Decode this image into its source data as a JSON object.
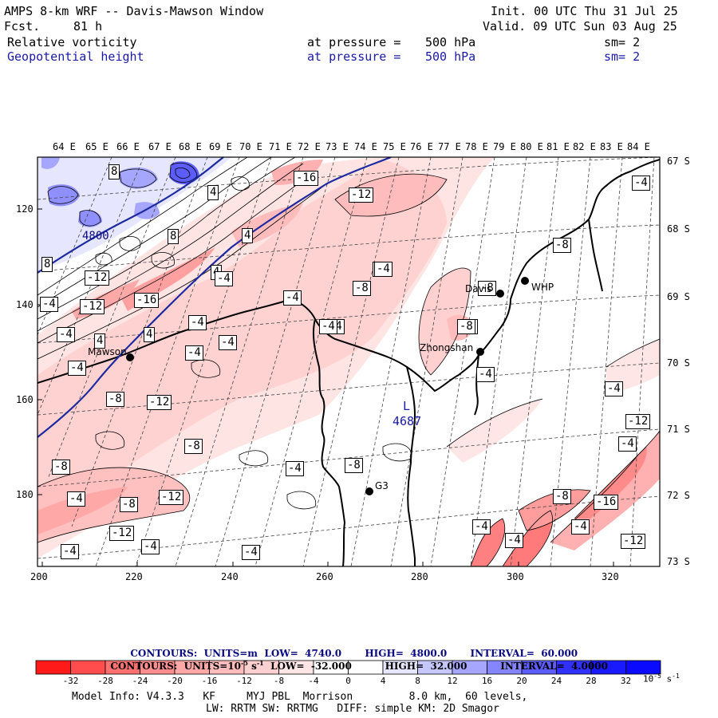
{
  "header": {
    "title": "AMPS 8-km WRF -- Davis-Mawson Window",
    "fcst_label": "Fcst.",
    "fcst_value": "81 h",
    "init": "Init. 00 UTC Thu 31 Jul 25",
    "valid": "Valid. 09 UTC Sun 03 Aug 25",
    "field1": {
      "name": "Relative vorticity",
      "pressure_label": "at pressure =",
      "pressure": "500 hPa",
      "sm": "sm= 2"
    },
    "field2": {
      "name": "Geopotential height",
      "pressure_label": "at pressure =",
      "pressure": "500 hPa",
      "sm": "sm= 2"
    }
  },
  "top_lon_labels": [
    "64 E",
    "65 E",
    "66 E",
    "67 E",
    "68 E",
    "69 E",
    "70 E",
    "71 E",
    "72 E",
    "73 E",
    "74 E",
    "75 E",
    "76 E",
    "77 E",
    "78 E",
    "79 E",
    "80 E",
    "81 E",
    "82 E",
    "83 E",
    "84 E"
  ],
  "right_lat_labels": [
    "67 S",
    "68 S",
    "69 S",
    "70 S",
    "71 S",
    "72 S",
    "73 S"
  ],
  "left_axis_labels": [
    "120",
    "140",
    "160",
    "180"
  ],
  "bottom_axis_labels": [
    "200",
    "220",
    "240",
    "260",
    "280",
    "300",
    "320"
  ],
  "stations": [
    {
      "name": "Mawson"
    },
    {
      "name": "Zhongshan"
    },
    {
      "name": "Davis"
    },
    {
      "name": "WHP"
    },
    {
      "name": "G3"
    }
  ],
  "low_marker": {
    "letter": "L",
    "value": "4687"
  },
  "height_label": "4800",
  "vort_labels": [
    "8",
    "-16",
    "-12",
    "4",
    "8",
    "8",
    "-12",
    "4",
    "4",
    "-8",
    "-12",
    "-16",
    "-4",
    "-4",
    "-8",
    "-8",
    "-4",
    "-4",
    "4",
    "4",
    "-4",
    "-4",
    "-12",
    "-8",
    "-4",
    "-8",
    "-8",
    "-4",
    "-8",
    "-4",
    "-12",
    "-8",
    "-12",
    "-4",
    "-4",
    "-4",
    "-4",
    "-8",
    "-4",
    "-4",
    "-12",
    "-4",
    "-8",
    "-4",
    "-16",
    "-4",
    "-4",
    "-4",
    "-12",
    "-4",
    "-8",
    "-4",
    "-4",
    "-4"
  ],
  "contour_lines": {
    "line1": {
      "prefix": "CONTOURS:",
      "units_label": "UNITS=m",
      "low_label": "LOW=",
      "low": "4740.0",
      "high_label": "HIGH=",
      "high": "4800.0",
      "interval_label": "INTERVAL=",
      "interval": "60.000"
    },
    "line2": {
      "prefix": "CONTOURS:",
      "units_label": "UNITS=10",
      "units_exp": "-5",
      "units_suffix": "s",
      "units_suffix_exp": "-1",
      "low_label": "LOW=",
      "low": "-32.000",
      "high_label": "HIGH=",
      "high": "32.000",
      "interval_label": "INTERVAL=",
      "interval": "4.0000"
    }
  },
  "colorbar": {
    "labels": [
      "-32",
      "-28",
      "-24",
      "-20",
      "-16",
      "-12",
      "-8",
      "-4",
      "0",
      "4",
      "8",
      "12",
      "16",
      "20",
      "24",
      "28",
      "32"
    ],
    "units": "10",
    "units_exp": "-5",
    "units_s": "s",
    "units_s_exp": "-1",
    "colors": [
      "#ff1a1a",
      "#ff4d4d",
      "#ff7070",
      "#ff8f8f",
      "#ffa8a8",
      "#ffbcbc",
      "#ffd0d0",
      "#ffe6e6",
      "#ffffff",
      "#ffffff",
      "#e6e6ff",
      "#c6c6ff",
      "#a6a6ff",
      "#8585ff",
      "#5c5cff",
      "#3030ff",
      "#0a0aff"
    ]
  },
  "footer": {
    "line1": "Model Info: V4.3.3   KF     MYJ PBL  Morrison         8.0 km,  60 levels,",
    "line2": "LW: RRTM SW: RRTMG   DIFF: simple KM: 2D Smagor"
  }
}
